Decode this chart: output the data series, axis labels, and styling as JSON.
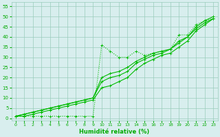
{
  "background_color": "#d8eeee",
  "grid_color": "#99ccbb",
  "line_color": "#00bb00",
  "marker_color": "#00bb00",
  "xlabel": "Humidité relative (%)",
  "xlabel_color": "#00aa00",
  "tick_color": "#00aa00",
  "xlim": [
    -0.5,
    23.5
  ],
  "ylim": [
    -1,
    57
  ],
  "yticks": [
    0,
    5,
    10,
    15,
    20,
    25,
    30,
    35,
    40,
    45,
    50,
    55
  ],
  "xticks": [
    0,
    1,
    2,
    3,
    4,
    5,
    6,
    7,
    8,
    9,
    10,
    11,
    12,
    13,
    14,
    15,
    16,
    17,
    18,
    19,
    20,
    21,
    22,
    23
  ],
  "series": [
    {
      "x": [
        0,
        1,
        2,
        3,
        4,
        5,
        6,
        7,
        8,
        9,
        10,
        11,
        12,
        13,
        14,
        15,
        16,
        17,
        18,
        19,
        20,
        21,
        22,
        23
      ],
      "y": [
        1,
        1,
        1,
        1,
        1,
        1,
        1,
        1,
        1,
        1,
        36,
        33,
        30,
        30,
        33,
        31,
        32,
        33,
        34,
        41,
        41,
        46,
        48,
        49
      ],
      "dotted": true
    },
    {
      "x": [
        0,
        1,
        2,
        3,
        4,
        5,
        6,
        7,
        8,
        9,
        10,
        11,
        12,
        13,
        14,
        15,
        16,
        17,
        18,
        19,
        20,
        21,
        22,
        23
      ],
      "y": [
        1,
        2,
        3,
        4,
        5,
        6,
        7,
        8,
        9,
        10,
        20,
        22,
        23,
        25,
        28,
        30,
        32,
        33,
        34,
        38,
        40,
        45,
        48,
        50
      ],
      "dotted": false
    },
    {
      "x": [
        0,
        1,
        2,
        3,
        4,
        5,
        6,
        7,
        8,
        9,
        10,
        11,
        12,
        13,
        14,
        15,
        16,
        17,
        18,
        19,
        20,
        21,
        22,
        23
      ],
      "y": [
        1,
        2,
        3,
        4,
        5,
        6,
        7,
        8,
        9,
        10,
        18,
        20,
        21,
        23,
        27,
        29,
        31,
        32,
        34,
        37,
        40,
        44,
        47,
        49
      ],
      "dotted": false
    },
    {
      "x": [
        0,
        1,
        2,
        3,
        4,
        5,
        6,
        7,
        8,
        9,
        10,
        11,
        12,
        13,
        14,
        15,
        16,
        17,
        18,
        19,
        20,
        21,
        22,
        23
      ],
      "y": [
        1,
        1,
        2,
        3,
        4,
        5,
        6,
        7,
        8,
        9,
        15,
        16,
        18,
        20,
        24,
        27,
        29,
        31,
        32,
        35,
        38,
        43,
        46,
        49
      ],
      "dotted": false
    }
  ]
}
